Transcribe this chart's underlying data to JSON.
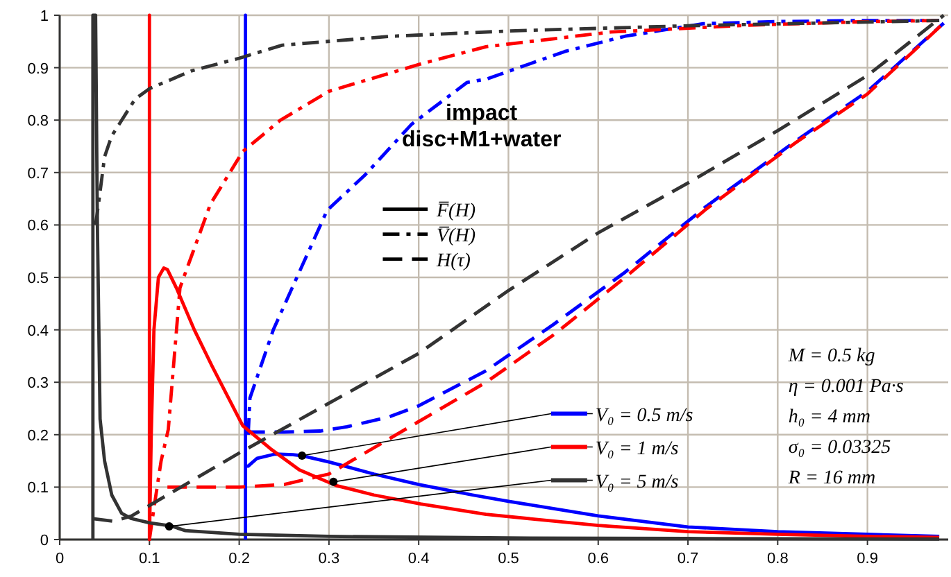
{
  "chart_data": {
    "type": "line",
    "title": "impact disc+M1+water",
    "xlim": [
      0,
      0.99
    ],
    "xticks": [
      0,
      0.1,
      0.2,
      0.3,
      0.4,
      0.5,
      0.6,
      0.7,
      0.8,
      0.9
    ],
    "ylim": [
      0,
      1
    ],
    "yticks": [
      0,
      0.1,
      0.2,
      0.3,
      0.4,
      0.5,
      0.6,
      0.7,
      0.8,
      0.9,
      1
    ],
    "grid": true,
    "annotations": [
      "F̅(H)",
      "V̅(H)",
      "H(τ)",
      "M = 0.5 kg",
      "η = 0.001 Pa·s",
      "h₀ = 4 mm",
      "σ₀ = 0.03325",
      "R = 16 mm",
      {
        "text": "V₀ = 0.5 m/s",
        "x": 0.27,
        "y": 0.16
      },
      {
        "text": "V₀ = 1 m/s",
        "x": 0.305,
        "y": 0.11
      },
      {
        "text": "V₀ = 5 m/s",
        "x": 0.122,
        "y": 0.025
      }
    ],
    "series": [
      {
        "color": "#0000ff",
        "line_style": "solid",
        "x": [
          0.207,
          0.207,
          0.207,
          0.21,
          0.22,
          0.24,
          0.26,
          0.27,
          0.3,
          0.35,
          0.4,
          0.46,
          0.5,
          0.6,
          0.7,
          0.8,
          0.9,
          0.98
        ],
        "values": [
          0,
          1,
          0.14,
          0.14,
          0.155,
          0.163,
          0.162,
          0.16,
          0.148,
          0.125,
          0.105,
          0.085,
          0.073,
          0.045,
          0.024,
          0.015,
          0.01,
          0.006
        ]
      },
      {
        "color": "#0000ff",
        "line_style": "dotted",
        "x": [
          0.21,
          0.212,
          0.238,
          0.259,
          0.298,
          0.34,
          0.392,
          0.454,
          0.475,
          0.563,
          0.63,
          0.717,
          0.8,
          0.9,
          0.98
        ],
        "values": [
          0.2,
          0.27,
          0.4,
          0.48,
          0.628,
          0.695,
          0.792,
          0.872,
          0.878,
          0.931,
          0.96,
          0.984,
          0.988,
          0.99,
          0.99
        ]
      },
      {
        "color": "#0000ff",
        "line_style": "dashed",
        "x": [
          0.207,
          0.25,
          0.29,
          0.32,
          0.367,
          0.4,
          0.475,
          0.55,
          0.63,
          0.72,
          0.82,
          0.9,
          0.985
        ],
        "values": [
          0.205,
          0.205,
          0.207,
          0.215,
          0.234,
          0.255,
          0.322,
          0.41,
          0.51,
          0.635,
          0.76,
          0.855,
          0.985
        ]
      },
      {
        "color": "#ff0000",
        "line_style": "solid",
        "x": [
          0.1,
          0.1,
          0.1,
          0.102,
          0.105,
          0.11,
          0.116,
          0.12,
          0.13,
          0.15,
          0.17,
          0.204,
          0.235,
          0.267,
          0.308,
          0.35,
          0.402,
          0.475,
          0.6,
          0.7,
          0.8,
          0.9,
          0.98
        ],
        "values": [
          0,
          1,
          0,
          0.2,
          0.4,
          0.5,
          0.518,
          0.515,
          0.48,
          0.4,
          0.33,
          0.217,
          0.173,
          0.133,
          0.103,
          0.085,
          0.068,
          0.048,
          0.027,
          0.015,
          0.01,
          0.006,
          0.004
        ]
      },
      {
        "color": "#ff0000",
        "line_style": "dotted",
        "x": [
          0.1,
          0.105,
          0.113,
          0.121,
          0.134,
          0.142,
          0.168,
          0.204,
          0.246,
          0.3,
          0.402,
          0.475,
          0.614,
          0.768,
          0.9,
          0.98
        ],
        "values": [
          0,
          0.06,
          0.15,
          0.21,
          0.48,
          0.518,
          0.64,
          0.74,
          0.8,
          0.855,
          0.907,
          0.94,
          0.968,
          0.981,
          0.988,
          0.99
        ]
      },
      {
        "color": "#ff0000",
        "line_style": "dashed",
        "x": [
          0.12,
          0.2,
          0.25,
          0.3,
          0.35,
          0.4,
          0.475,
          0.55,
          0.63,
          0.72,
          0.82,
          0.9,
          0.985
        ],
        "values": [
          0.1,
          0.1,
          0.105,
          0.125,
          0.175,
          0.225,
          0.3,
          0.39,
          0.5,
          0.63,
          0.757,
          0.85,
          0.985
        ]
      },
      {
        "color": "#333333",
        "line_style": "solid",
        "x": [
          0.037,
          0.037,
          0.04,
          0.042,
          0.045,
          0.05,
          0.058,
          0.069,
          0.08,
          0.1,
          0.124,
          0.14,
          0.2,
          0.3,
          0.5,
          0.7,
          0.98
        ],
        "values": [
          0,
          1,
          1,
          0.6,
          0.23,
          0.15,
          0.085,
          0.05,
          0.04,
          0.032,
          0.026,
          0.017,
          0.01,
          0.006,
          0.003,
          0.002,
          0.001
        ]
      },
      {
        "color": "#333333",
        "line_style": "dotted",
        "x": [
          0.04,
          0.044,
          0.05,
          0.058,
          0.084,
          0.1,
          0.147,
          0.2,
          0.248,
          0.37,
          0.5,
          0.7,
          0.98
        ],
        "values": [
          0.6,
          0.65,
          0.73,
          0.77,
          0.84,
          0.86,
          0.894,
          0.918,
          0.943,
          0.96,
          0.97,
          0.98,
          0.99
        ]
      },
      {
        "color": "#333333",
        "line_style": "dashed",
        "x": [
          0.037,
          0.06,
          0.08,
          0.1,
          0.15,
          0.2,
          0.3,
          0.4,
          0.5,
          0.6,
          0.7,
          0.8,
          0.9,
          0.985
        ],
        "values": [
          0.04,
          0.035,
          0.045,
          0.065,
          0.115,
          0.165,
          0.26,
          0.355,
          0.475,
          0.585,
          0.68,
          0.78,
          0.885,
          1
        ]
      }
    ]
  }
}
